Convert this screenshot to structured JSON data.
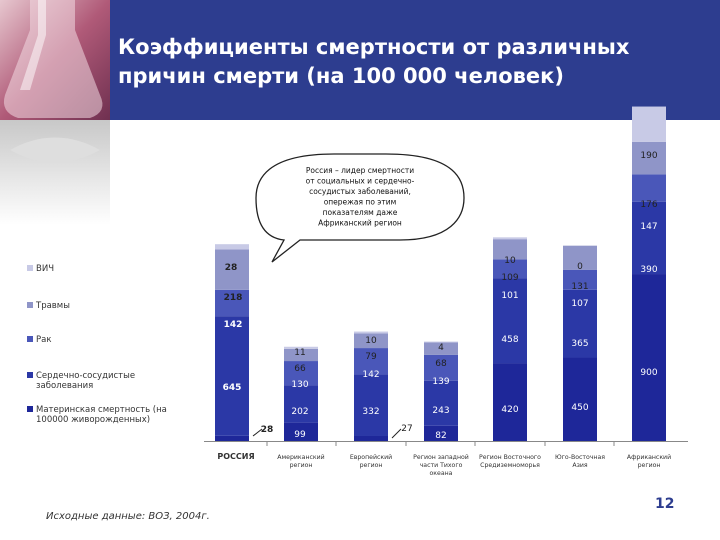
{
  "slide": {
    "title": "Коэффициенты смертности от различных причин смерти (на 100 000 человек)",
    "source": "Исходные данные: ВОЗ, 2004г.",
    "page_number": "12",
    "callout": [
      "Россия – лидер смертности",
      "от социальных и сердечно-",
      "сосудистых заболеваний,",
      "опережая по этим",
      "показателям даже",
      "Африканский регион"
    ]
  },
  "colors": {
    "header": "#2d3d8f",
    "maternal": "#1e2799",
    "cardio": "#2b38a6",
    "cancer": "#4a57b9",
    "injuries": "#8f95c8",
    "hiv": "#c8cae6"
  },
  "chart_data": {
    "type": "bar",
    "stacked": true,
    "categories": [
      "РОССИЯ",
      "Американский регион",
      "Европейский регион",
      "Регион западной части Тихого океана",
      "Регион Восточного Средиземноморья",
      "Юго-Восточная Азия",
      "Африканский регион"
    ],
    "category_lines": [
      [
        "РОССИЯ"
      ],
      [
        "Американский",
        "регион"
      ],
      [
        "Европейский",
        "регион"
      ],
      [
        "Регион западной",
        "части Тихого",
        "океана"
      ],
      [
        "Регион Восточного",
        "Средиземноморья"
      ],
      [
        "Юго-Восточная",
        "Азия"
      ],
      [
        "Африканский",
        "регион"
      ]
    ],
    "legend": [
      [
        "ВИЧ"
      ],
      [
        "Травмы"
      ],
      [
        "Рак"
      ],
      [
        "Сердечно-сосудистые",
        "заболевания"
      ],
      [
        "Материнская смертность (на",
        "100000 живорожденных)"
      ]
    ],
    "series": [
      {
        "name": "Материнская смертность (на 100000 живорожденных)",
        "values": [
          28,
          99,
          27,
          82,
          420,
          450,
          900
        ]
      },
      {
        "name": "Сердечно-сосудистые заболевания",
        "values": [
          645,
          202,
          332,
          243,
          458,
          365,
          390
        ]
      },
      {
        "name": "Рак",
        "values": [
          142,
          130,
          142,
          139,
          101,
          107,
          147
        ]
      },
      {
        "name": "Травмы",
        "values": [
          218,
          66,
          79,
          68,
          109,
          131,
          176
        ]
      },
      {
        "name": "ВИЧ",
        "values": [
          28,
          11,
          10,
          4,
          10,
          0,
          190
        ]
      }
    ]
  }
}
